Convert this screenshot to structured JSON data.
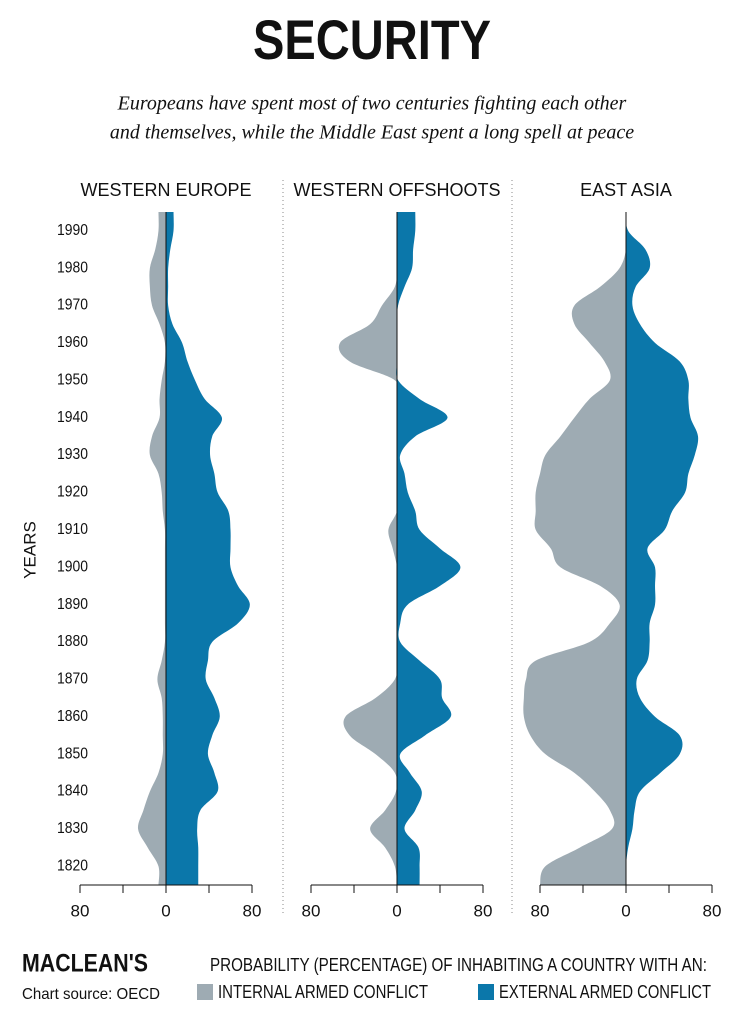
{
  "header": {
    "title": "SECURITY",
    "subtitle": [
      "Europeans have spent most of two centuries fighting each other",
      "and themselves, while the Middle East spent a long spell at peace"
    ]
  },
  "footer": {
    "brand": "MACLEAN'S",
    "source": "Chart source: OECD",
    "legend_title": "PROBABILITY (PERCENTAGE) OF INHABITING A COUNTRY WITH AN:"
  },
  "chart_data": [
    {
      "type": "mirrored-area",
      "title": "WESTERN EUROPE",
      "ylabel": "YEARS",
      "x": [
        1995,
        1990,
        1985,
        1980,
        1975,
        1970,
        1965,
        1960,
        1955,
        1950,
        1945,
        1940,
        1935,
        1930,
        1925,
        1920,
        1915,
        1910,
        1905,
        1900,
        1895,
        1890,
        1885,
        1880,
        1875,
        1870,
        1865,
        1860,
        1855,
        1850,
        1845,
        1840,
        1835,
        1830,
        1825,
        1820,
        1815
      ],
      "ylim": [
        1815,
        1995
      ],
      "yticks": [
        1820,
        1830,
        1840,
        1850,
        1860,
        1870,
        1880,
        1890,
        1900,
        1910,
        1920,
        1930,
        1940,
        1950,
        1960,
        1970,
        1980,
        1990
      ],
      "xlim": [
        -80,
        80
      ],
      "xticks": [
        {
          "value": -80,
          "label": "80"
        },
        0,
        80
      ],
      "xminorticks": [
        -40,
        40
      ],
      "series": [
        {
          "name": "INTERNAL ARMED CONFLICT",
          "color": "#9eabb3",
          "direction": "left",
          "values": [
            7,
            7,
            10,
            15,
            15,
            13,
            6,
            1,
            1,
            4,
            6,
            6,
            13,
            15,
            7,
            4,
            3,
            1,
            1,
            1,
            1,
            1,
            1,
            1,
            4,
            8,
            4,
            3,
            3,
            3,
            7,
            15,
            21,
            26,
            17,
            7,
            7
          ]
        },
        {
          "name": "EXTERNAL ARMED CONFLICT",
          "color": "#0b77aa",
          "direction": "right",
          "values": [
            7,
            7,
            4,
            2,
            2,
            2,
            6,
            15,
            20,
            27,
            36,
            52,
            43,
            41,
            45,
            48,
            58,
            60,
            60,
            60,
            67,
            78,
            67,
            43,
            39,
            37,
            45,
            50,
            43,
            39,
            45,
            48,
            32,
            29,
            30,
            30,
            30
          ]
        }
      ]
    },
    {
      "type": "mirrored-area",
      "title": "WESTERN OFFSHOOTS",
      "x": [
        1995,
        1990,
        1985,
        1980,
        1975,
        1970,
        1965,
        1960,
        1955,
        1950,
        1945,
        1940,
        1935,
        1930,
        1925,
        1920,
        1915,
        1910,
        1905,
        1900,
        1895,
        1890,
        1885,
        1880,
        1875,
        1870,
        1865,
        1860,
        1855,
        1850,
        1845,
        1840,
        1835,
        1830,
        1825,
        1820,
        1815
      ],
      "ylim": [
        1815,
        1995
      ],
      "xlim": [
        -80,
        80
      ],
      "xticks": [
        {
          "value": -80,
          "label": "80"
        },
        0,
        80
      ],
      "xminorticks": [
        -40,
        40
      ],
      "series": [
        {
          "name": "INTERNAL ARMED CONFLICT",
          "color": "#9eabb3",
          "direction": "left",
          "values": [
            0,
            0,
            0,
            0,
            2,
            14,
            25,
            53,
            44,
            2,
            0,
            0,
            0,
            0,
            0,
            0,
            0,
            8,
            4,
            0,
            0,
            0,
            0,
            0,
            0,
            2,
            20,
            48,
            44,
            20,
            2,
            1,
            11,
            25,
            11,
            2,
            0
          ]
        },
        {
          "name": "EXTERNAL ARMED CONFLICT",
          "color": "#0b77aa",
          "direction": "right",
          "values": [
            17,
            17,
            15,
            14,
            7,
            1,
            0,
            0,
            0,
            1,
            21,
            47,
            17,
            3,
            7,
            10,
            17,
            21,
            40,
            59,
            40,
            10,
            3,
            3,
            21,
            40,
            42,
            50,
            26,
            3,
            12,
            23,
            17,
            7,
            20,
            21,
            21
          ]
        }
      ]
    },
    {
      "type": "mirrored-area",
      "title": "EAST ASIA",
      "x": [
        1995,
        1990,
        1985,
        1980,
        1975,
        1970,
        1965,
        1960,
        1955,
        1950,
        1945,
        1940,
        1935,
        1930,
        1925,
        1920,
        1915,
        1910,
        1905,
        1900,
        1895,
        1890,
        1885,
        1880,
        1875,
        1870,
        1865,
        1860,
        1855,
        1850,
        1845,
        1840,
        1835,
        1830,
        1825,
        1820,
        1815
      ],
      "ylim": [
        1815,
        1995
      ],
      "xlim": [
        -80,
        80
      ],
      "xticks": [
        {
          "value": -80,
          "label": "80"
        },
        0,
        80
      ],
      "xminorticks": [
        -40,
        40
      ],
      "series": [
        {
          "name": "INTERNAL ARMED CONFLICT",
          "color": "#9eabb3",
          "direction": "left",
          "values": [
            0,
            0,
            0,
            6,
            24,
            48,
            48,
            34,
            20,
            15,
            34,
            48,
            61,
            75,
            80,
            84,
            84,
            84,
            70,
            61,
            24,
            6,
            15,
            34,
            84,
            93,
            95,
            95,
            89,
            75,
            48,
            29,
            15,
            13,
            43,
            75,
            80
          ]
        },
        {
          "name": "EXTERNAL ARMED CONFLICT",
          "color": "#0b77aa",
          "direction": "right",
          "values": [
            0,
            2,
            18,
            22,
            9,
            6,
            13,
            27,
            50,
            58,
            58,
            60,
            67,
            64,
            58,
            55,
            43,
            36,
            20,
            27,
            27,
            27,
            22,
            22,
            20,
            10,
            13,
            27,
            50,
            50,
            32,
            13,
            8,
            6,
            2,
            0,
            0
          ]
        }
      ]
    }
  ]
}
